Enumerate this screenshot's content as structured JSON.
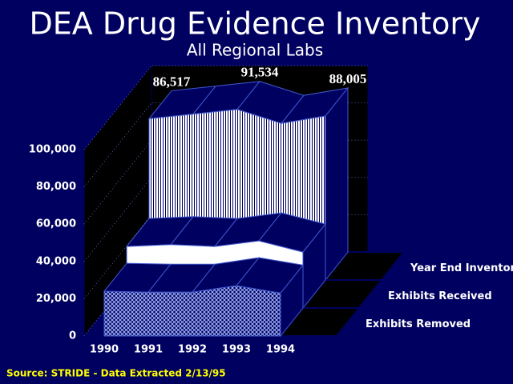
{
  "chart_data": {
    "type": "area3d",
    "title": "DEA Drug Evidence Inventory",
    "subtitle": "All Regional Labs",
    "source": "Source:  STRIDE - Data Extracted 2/13/95",
    "categories": [
      "1990",
      "1991",
      "1992",
      "1993",
      "1994"
    ],
    "series": [
      {
        "name": "Year End Inventory",
        "color": "#ffffff",
        "pattern": "vertical-lines",
        "values": [
          86517,
          89000,
          91534,
          84000,
          88005
        ],
        "value_labels": [
          "86,517",
          null,
          "91,534",
          null,
          "88,005"
        ]
      },
      {
        "name": "Exhibits Received",
        "color": "#ffffff",
        "pattern": "solid",
        "values": [
          33000,
          34000,
          33000,
          36000,
          30000
        ]
      },
      {
        "name": "Exhibits Removed",
        "color": "#a8bcff",
        "pattern": "crosshatch",
        "values": [
          24000,
          23500,
          23500,
          27000,
          23000
        ]
      }
    ],
    "ylim": [
      0,
      100000
    ],
    "yticks": [
      0,
      {
        "value": 20000,
        "label": "20,000"
      },
      {
        "value": 40000,
        "label": "40,000"
      },
      {
        "value": 60000,
        "label": "60,000"
      },
      {
        "value": 80000,
        "label": "80,000"
      },
      {
        "value": 100000,
        "label": "100,000"
      }
    ],
    "grid": true
  }
}
